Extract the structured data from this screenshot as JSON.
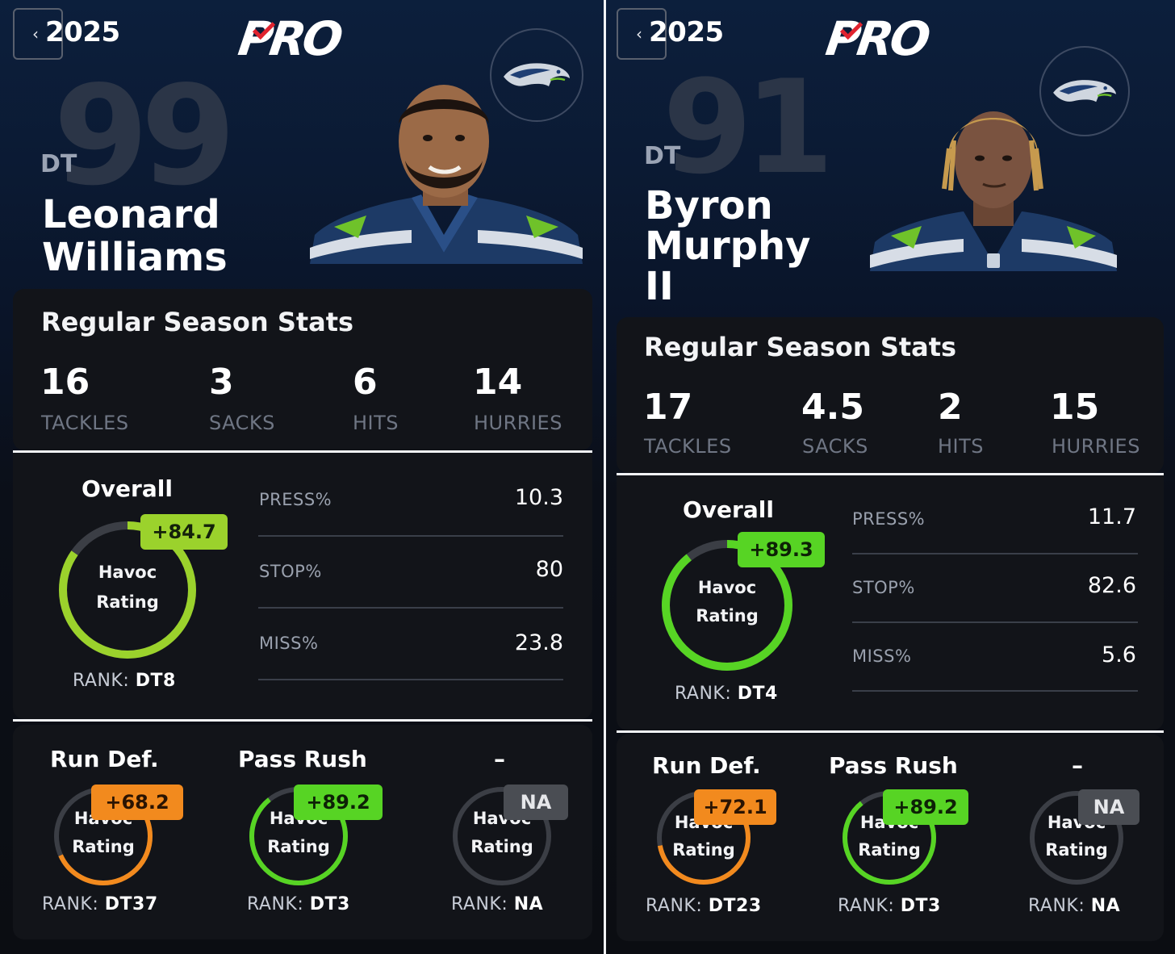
{
  "players": [
    {
      "year": "2025",
      "brand": "PRO",
      "jersey_number": "99",
      "position": "DT",
      "name_lines": [
        "Leonard",
        "Williams"
      ],
      "stats_title": "Regular Season Stats",
      "stats": [
        {
          "value": "16",
          "label": "TACKLES"
        },
        {
          "value": "3",
          "label": "SACKS"
        },
        {
          "value": "6",
          "label": "HITS"
        },
        {
          "value": "14",
          "label": "HURRIES"
        }
      ],
      "overall": {
        "label": "Overall",
        "grade": "+84.7",
        "grade_value": 84.7,
        "ring_line1": "Havoc",
        "ring_line2": "Rating",
        "rank_label": "RANK:",
        "rank_value": "DT8",
        "color": "#9bd22c"
      },
      "metrics": [
        {
          "label": "PRESS%",
          "value": "10.3"
        },
        {
          "label": "STOP%",
          "value": "80"
        },
        {
          "label": "MISS%",
          "value": "23.8"
        }
      ],
      "sub_ratings": [
        {
          "title": "Run Def.",
          "grade": "+68.2",
          "grade_value": 68.2,
          "ring_line1": "Havoc",
          "ring_line2": "Rating",
          "rank_label": "RANK:",
          "rank_value": "DT37",
          "color": "#f28a1e"
        },
        {
          "title": "Pass Rush",
          "grade": "+89.2",
          "grade_value": 89.2,
          "ring_line1": "Havoc",
          "ring_line2": "Rating",
          "rank_label": "RANK:",
          "rank_value": "DT3",
          "color": "#57d424"
        },
        {
          "title": "–",
          "grade": "NA",
          "grade_value": 0,
          "ring_line1": "Havoc",
          "ring_line2": "Rating",
          "rank_label": "RANK:",
          "rank_value": "NA",
          "color": "#4a4d53"
        }
      ]
    },
    {
      "year": "2025",
      "brand": "PRO",
      "jersey_number": "91",
      "position": "DT",
      "name_lines": [
        "Byron",
        "Murphy",
        "II"
      ],
      "stats_title": "Regular Season Stats",
      "stats": [
        {
          "value": "17",
          "label": "TACKLES"
        },
        {
          "value": "4.5",
          "label": "SACKS"
        },
        {
          "value": "2",
          "label": "HITS"
        },
        {
          "value": "15",
          "label": "HURRIES"
        }
      ],
      "overall": {
        "label": "Overall",
        "grade": "+89.3",
        "grade_value": 89.3,
        "ring_line1": "Havoc",
        "ring_line2": "Rating",
        "rank_label": "RANK:",
        "rank_value": "DT4",
        "color": "#57d424"
      },
      "metrics": [
        {
          "label": "PRESS%",
          "value": "11.7"
        },
        {
          "label": "STOP%",
          "value": "82.6"
        },
        {
          "label": "MISS%",
          "value": "5.6"
        }
      ],
      "sub_ratings": [
        {
          "title": "Run Def.",
          "grade": "+72.1",
          "grade_value": 72.1,
          "ring_line1": "Havoc",
          "ring_line2": "Rating",
          "rank_label": "RANK:",
          "rank_value": "DT23",
          "color": "#f28a1e"
        },
        {
          "title": "Pass Rush",
          "grade": "+89.2",
          "grade_value": 89.2,
          "ring_line1": "Havoc",
          "ring_line2": "Rating",
          "rank_label": "RANK:",
          "rank_value": "DT3",
          "color": "#57d424"
        },
        {
          "title": "–",
          "grade": "NA",
          "grade_value": 0,
          "ring_line1": "Havoc",
          "ring_line2": "Rating",
          "rank_label": "RANK:",
          "rank_value": "NA",
          "color": "#4a4d53"
        }
      ]
    }
  ],
  "icons": {
    "back": "chevron-left-icon",
    "team": "seahawks-logo-icon",
    "headshot": "player-headshot-image"
  }
}
